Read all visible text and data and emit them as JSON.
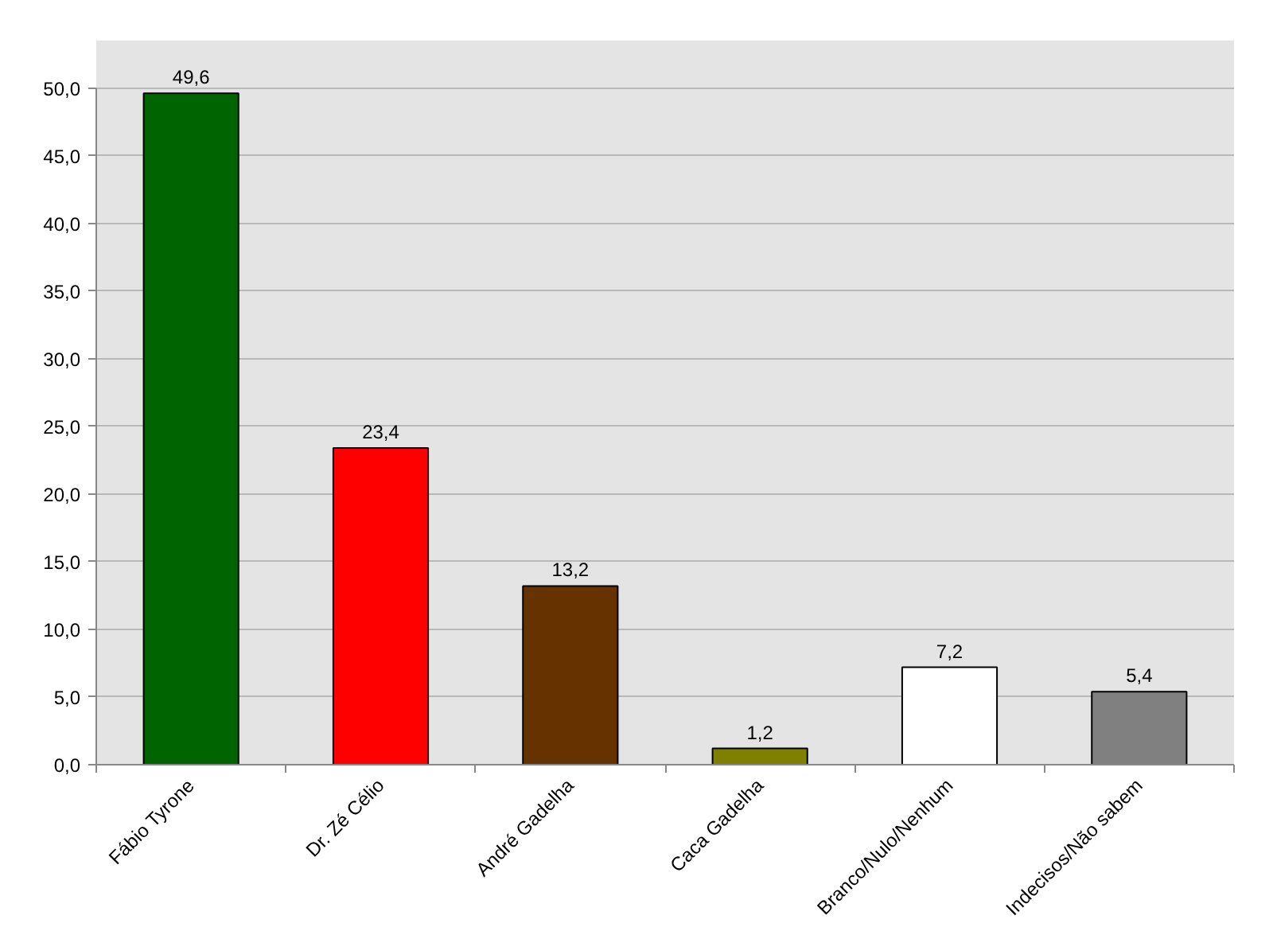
{
  "chart_data": {
    "type": "bar",
    "categories": [
      "Fábio Tyrone",
      "Dr. Zé Célio",
      "André Gadelha",
      "Caca Gadelha",
      "Branco/Nulo/Nenhum",
      "Indecisos/Não sabem"
    ],
    "values": [
      49.6,
      23.4,
      13.2,
      1.2,
      7.2,
      5.4
    ],
    "value_labels": [
      "49,6",
      "23,4",
      "13,2",
      "1,2",
      "7,2",
      "5,4"
    ],
    "colors": [
      "#006400",
      "#ff0000",
      "#663300",
      "#808000",
      "#ffffff",
      "#808080"
    ],
    "ylim": [
      0,
      50
    ],
    "yticks": [
      {
        "value": 0,
        "label": "0,0"
      },
      {
        "value": 5,
        "label": "5,0"
      },
      {
        "value": 10,
        "label": "10,0"
      },
      {
        "value": 15,
        "label": "15,0"
      },
      {
        "value": 20,
        "label": "20,0"
      },
      {
        "value": 25,
        "label": "25,0"
      },
      {
        "value": 30,
        "label": "30,0"
      },
      {
        "value": 35,
        "label": "35,0"
      },
      {
        "value": 40,
        "label": "40,0"
      },
      {
        "value": 45,
        "label": "45,0"
      },
      {
        "value": 50,
        "label": "50,0"
      }
    ],
    "grid": "y"
  }
}
